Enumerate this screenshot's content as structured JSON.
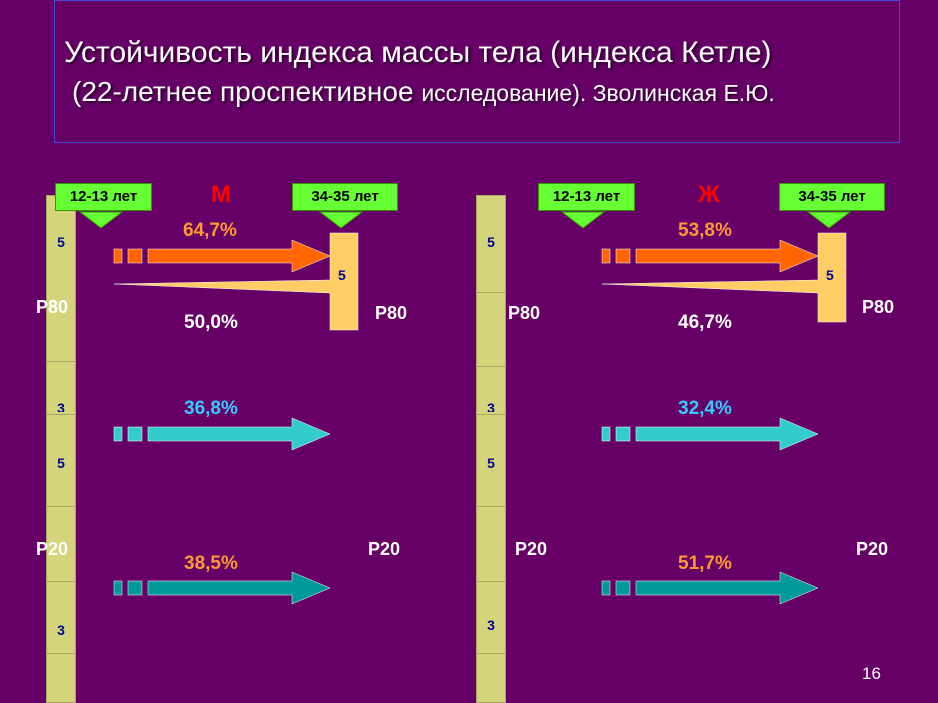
{
  "title": {
    "line1": "Устойчивость индекса массы тела (индекса Кетле)",
    "line2_main": "(22-летнее проспективное ",
    "line2_small": "исследование",
    "line2_tail": "). Зволинская Е.Ю."
  },
  "colors": {
    "background": "#660066",
    "scale_fill": "#d4d47a",
    "age_box": "#66ff33",
    "arrow_orange": "#ff6600",
    "arrow_cyan": "#33cccc",
    "arrow_teal": "#009999",
    "wedge": "#ffcc66",
    "sex_label": "#ff0000"
  },
  "panels": [
    {
      "sex": "М",
      "age_start": "12-13 лет",
      "age_end": "34-35 лет",
      "scale_cells": [
        "5",
        "3",
        "5",
        "3"
      ],
      "p80_left": "P80",
      "p80_right": "P80",
      "p20_left": "P20",
      "p20_right": "P20",
      "dest_cell": "5",
      "top_pct": "64,7%",
      "wedge_pct": "50,0%",
      "mid_pct": "36,8%",
      "low_pct": "38,5%"
    },
    {
      "sex": "Ж",
      "age_start": "12-13 лет",
      "age_end": "34-35 лет",
      "scale_cells": [
        "5",
        "3",
        "5",
        "3"
      ],
      "p80_left": "P80",
      "p80_right": "P80",
      "p20_left": "P20",
      "p20_right": "P20",
      "dest_cell": "5",
      "top_pct": "53,8%",
      "wedge_pct": "46,7%",
      "mid_pct": "32,4%",
      "low_pct": "51,7%"
    }
  ],
  "page_number": "16"
}
